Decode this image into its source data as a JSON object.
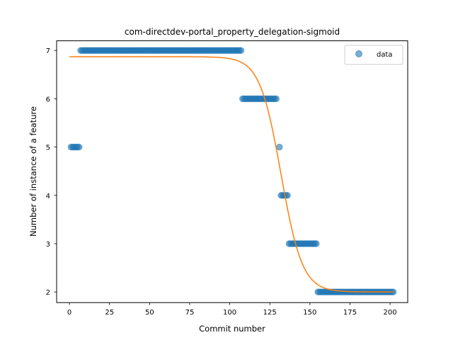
{
  "chart_data": {
    "type": "scatter",
    "title": "com-directdev-portal_property_delegation-sigmoid",
    "xlabel": "Commit number",
    "ylabel": "Number of instance of a feature",
    "xlim": [
      -8,
      211
    ],
    "ylim": [
      1.78,
      7.2
    ],
    "xticks": [
      0,
      25,
      50,
      75,
      100,
      125,
      150,
      175,
      200
    ],
    "yticks": [
      2,
      3,
      4,
      5,
      6,
      7
    ],
    "grid": false,
    "legend_position": "top-right",
    "colors": {
      "data": "#1f77b4",
      "fit": "#ff7f0e"
    },
    "series": [
      {
        "name": "data",
        "kind": "scatter",
        "runs": [
          {
            "x_start": 1,
            "x_end": 6,
            "y": 5
          },
          {
            "x_start": 7,
            "x_end": 107,
            "y": 7
          },
          {
            "x_start": 108,
            "x_end": 129,
            "y": 6
          },
          {
            "x_start": 131,
            "x_end": 131,
            "y": 5
          },
          {
            "x_start": 132,
            "x_end": 136,
            "y": 4
          },
          {
            "x_start": 137,
            "x_end": 154,
            "y": 3
          },
          {
            "x_start": 155,
            "x_end": 202,
            "y": 2
          }
        ]
      },
      {
        "name": "",
        "kind": "line",
        "sigmoid": {
          "top": 6.87,
          "bottom": 2.0,
          "midpoint": 132,
          "slope": 0.15
        },
        "x_range": [
          0,
          202
        ]
      }
    ]
  }
}
